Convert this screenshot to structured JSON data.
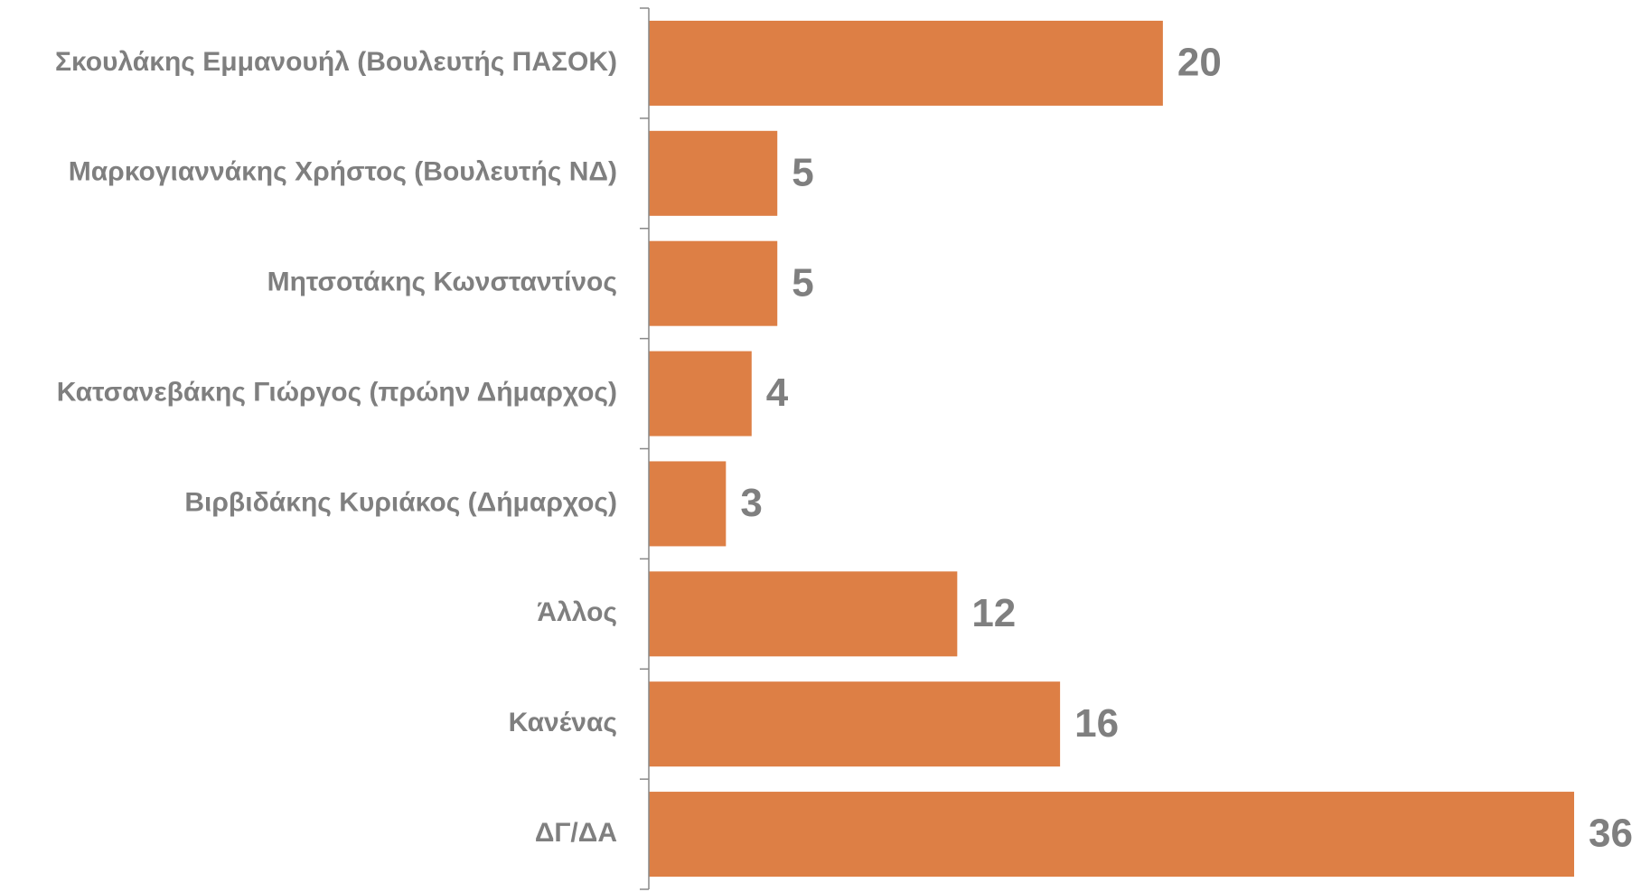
{
  "chart_data": {
    "type": "bar",
    "orientation": "horizontal",
    "categories": [
      "Σκουλάκης Εμμανουήλ (Βουλευτής ΠΑΣΟΚ)",
      "Μαρκογιαννάκης Χρήστος (Βουλευτής ΝΔ)",
      "Μητσοτάκης Κωνσταντίνος",
      "Κατσανεβάκης Γιώργος (πρώην Δήμαρχος)",
      "Βιρβιδάκης Κυριάκος (Δήμαρχος)",
      "Άλλος",
      "Κανένας",
      "ΔΓ/ΔΑ"
    ],
    "values": [
      20,
      5,
      5,
      4,
      3,
      12,
      16,
      36
    ],
    "color": "#dd7f45"
  }
}
